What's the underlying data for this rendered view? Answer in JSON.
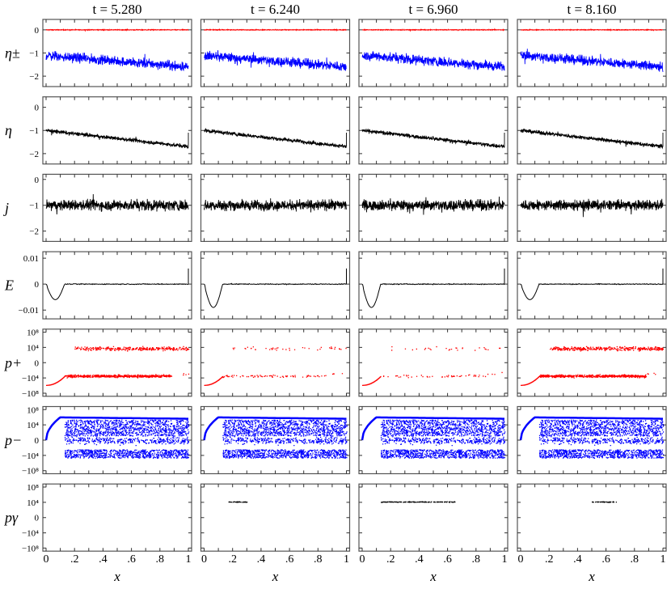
{
  "chart_data": {
    "type": "line+scatter grid",
    "columns": [
      {
        "title": "t = 5.280",
        "t": 5.28
      },
      {
        "title": "t = 6.240",
        "t": 6.24
      },
      {
        "title": "t = 6.960",
        "t": 6.96
      },
      {
        "title": "t = 8.160",
        "t": 8.16
      }
    ],
    "xlabel": "x",
    "xlim": [
      0,
      1
    ],
    "xtick_labels": [
      {
        "v": 0,
        "label": "0"
      },
      {
        "v": 0.2,
        "label": ".2"
      },
      {
        "v": 0.4,
        "label": ".4"
      },
      {
        "v": 0.6,
        "label": ".6"
      },
      {
        "v": 0.8,
        "label": ".8"
      },
      {
        "v": 1,
        "label": "1"
      }
    ],
    "rows": [
      {
        "key": "eta_pm",
        "ylabel": "η±",
        "kind": "line",
        "ylim": [
          -2.45,
          0.45
        ],
        "yticks": [
          {
            "v": 0,
            "label": "0"
          },
          {
            "v": -1,
            "label": "−1"
          },
          {
            "v": -2,
            "label": "−2"
          }
        ],
        "series": [
          {
            "name": "eta_plus",
            "color": "#ff0000",
            "start": 0,
            "end": 0,
            "noise": 0.02
          },
          {
            "name": "eta_minus",
            "color": "#0000ff",
            "start": -1.1,
            "end": -1.6,
            "noise": 0.3
          }
        ]
      },
      {
        "key": "eta",
        "ylabel": "η",
        "kind": "line",
        "ylim": [
          -2.45,
          0.45
        ],
        "yticks": [
          {
            "v": 0,
            "label": "0"
          },
          {
            "v": -1,
            "label": "−1"
          },
          {
            "v": -2,
            "label": "−2"
          }
        ],
        "series": [
          {
            "name": "eta",
            "color": "#000000",
            "start": -1.0,
            "end": -1.7,
            "noise": 0.12
          }
        ]
      },
      {
        "key": "j",
        "ylabel": "j",
        "kind": "line",
        "ylim": [
          -2.4,
          0.2
        ],
        "yticks": [
          {
            "v": 0,
            "label": "0"
          },
          {
            "v": -1,
            "label": "−1"
          },
          {
            "v": -2,
            "label": "−2"
          }
        ],
        "series": [
          {
            "name": "j",
            "color": "#000000",
            "start": -1.0,
            "end": -1.0,
            "noise": 0.3
          }
        ]
      },
      {
        "key": "E",
        "ylabel": "E",
        "kind": "field",
        "ylim": [
          -0.0134,
          0.0125
        ],
        "yticks": [
          {
            "v": 0.01,
            "label": "0.01"
          },
          {
            "v": 0,
            "label": "0"
          },
          {
            "v": -0.01,
            "label": "−0.01"
          }
        ],
        "color": "#000000",
        "dip_min": [
          -0.006,
          -0.009,
          -0.009,
          -0.006
        ],
        "dip_end_x": 0.13
      },
      {
        "key": "p_plus",
        "ylabel": "p+",
        "kind": "scatter",
        "color": "#ff0000",
        "ylim": [
          -2.2,
          2.2
        ],
        "yticks": [
          {
            "v": 2,
            "label": "10⁸"
          },
          {
            "v": 1,
            "label": "10⁴"
          },
          {
            "v": 0,
            "label": "0"
          },
          {
            "v": -1,
            "label": "−10⁴"
          },
          {
            "v": -2,
            "label": "−10⁸"
          }
        ],
        "density": [
          0.9,
          0.12,
          0.08,
          1.0
        ]
      },
      {
        "key": "p_minus",
        "ylabel": "p−",
        "kind": "scatter",
        "color": "#0000ff",
        "ylim": [
          -2.2,
          2.2
        ],
        "yticks": [
          {
            "v": 2,
            "label": "10⁸"
          },
          {
            "v": 1,
            "label": "10⁴"
          },
          {
            "v": 0,
            "label": "0"
          },
          {
            "v": -1,
            "label": "−10⁴"
          },
          {
            "v": -2,
            "label": "−10⁸"
          }
        ],
        "density": [
          1,
          1,
          1,
          1
        ]
      },
      {
        "key": "p_gamma",
        "ylabel": "pγ",
        "kind": "scatter",
        "color": "#000000",
        "ylim": [
          -2.2,
          2.2
        ],
        "yticks": [
          {
            "v": 2,
            "label": "10⁸"
          },
          {
            "v": 1,
            "label": "10⁴"
          },
          {
            "v": 0,
            "label": "0"
          },
          {
            "v": -1,
            "label": "−10⁴"
          },
          {
            "v": -2,
            "label": "−10⁸"
          }
        ],
        "clusters": [
          null,
          {
            "x": [
              0.17,
              0.3
            ],
            "level": 1.05
          },
          {
            "x": [
              0.13,
              0.65
            ],
            "level": 1.05
          },
          {
            "x": [
              0.5,
              0.67
            ],
            "level": 1.05
          }
        ]
      }
    ]
  }
}
